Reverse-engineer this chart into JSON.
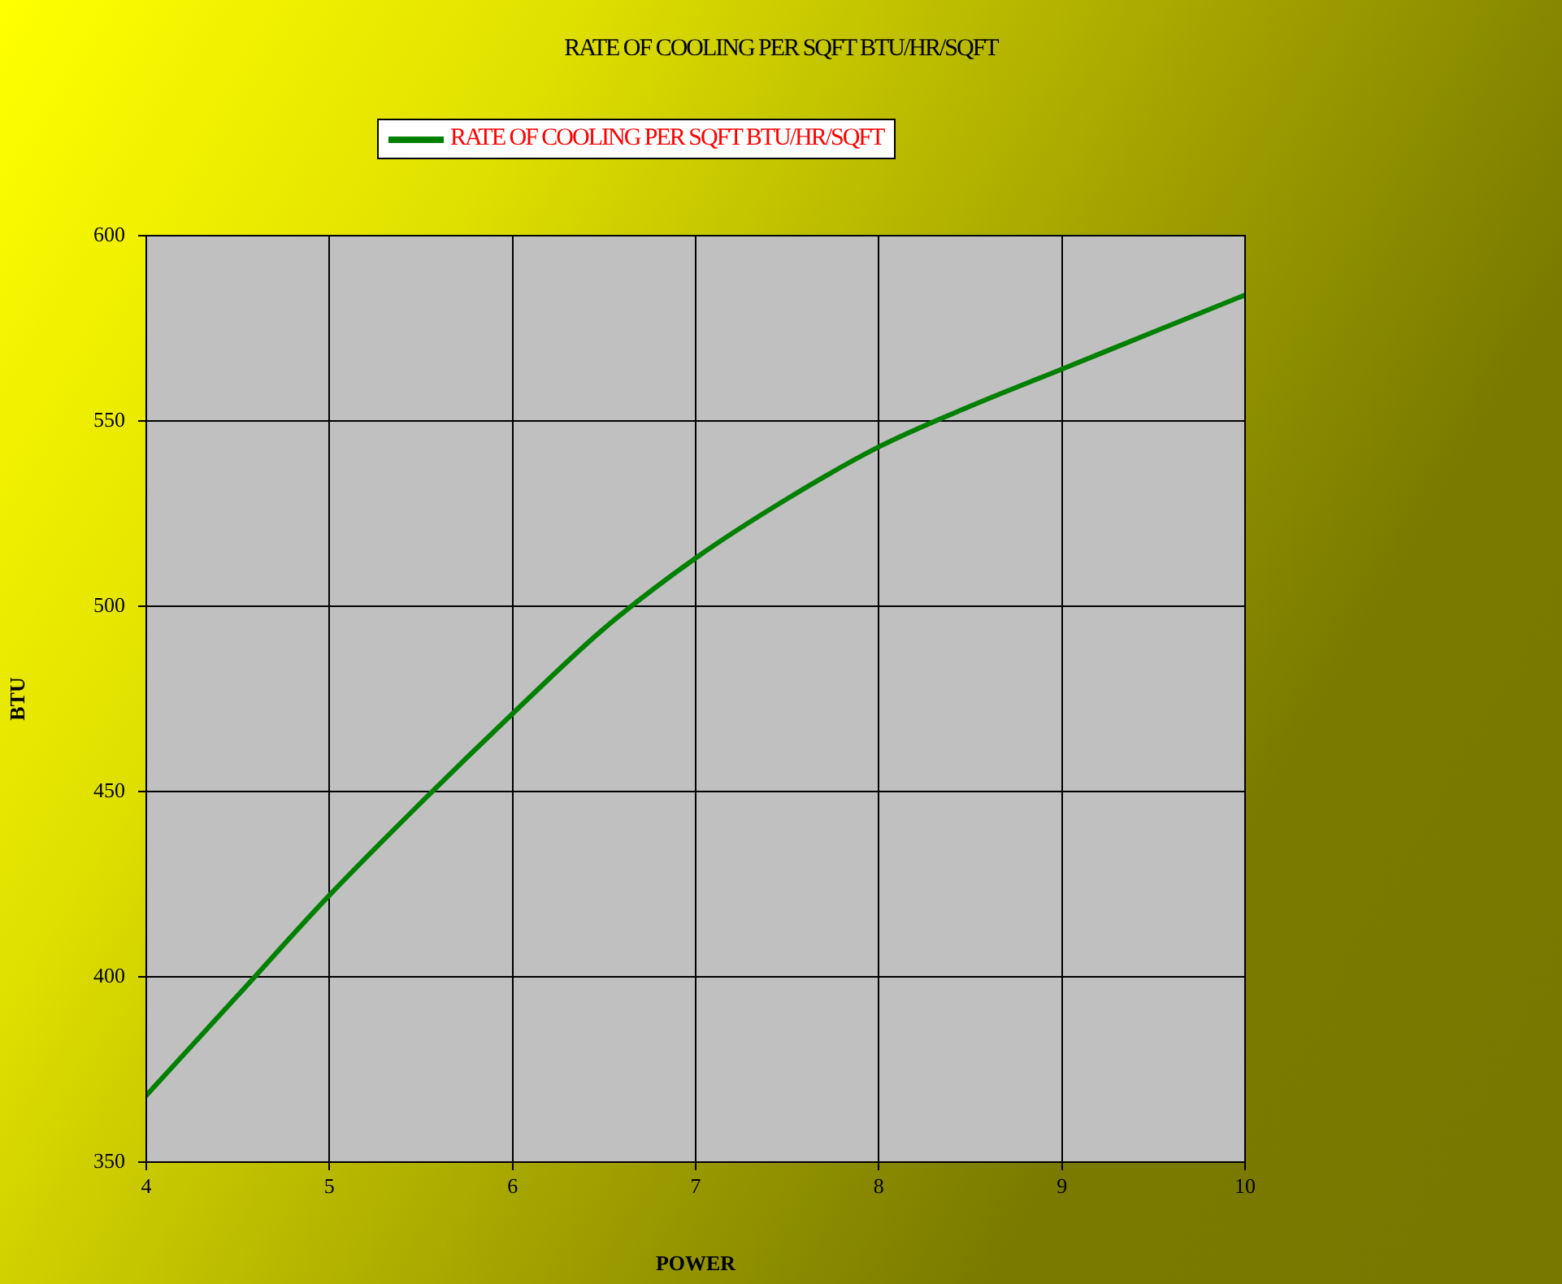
{
  "chart_data": {
    "type": "line",
    "title": "RATE OF COOLING PER SQFT BTU/HR/SQFT",
    "xlabel": "POWER",
    "ylabel": "BTU",
    "x": [
      4,
      4.5,
      5,
      5.5,
      6,
      6.5,
      7,
      7.5,
      8,
      8.5,
      9,
      9.5,
      10
    ],
    "series": [
      {
        "name": "RATE OF COOLING PER SQFT BTU/HR/SQFT",
        "color": "#008000",
        "values": [
          368,
          395,
          422,
          447,
          471,
          494,
          513,
          529,
          543,
          554,
          564,
          574,
          584
        ]
      }
    ],
    "xlim": [
      4,
      10
    ],
    "xticks": [
      4,
      5,
      6,
      7,
      8,
      9,
      10
    ],
    "ylim": [
      350,
      600
    ],
    "yticks": [
      350,
      400,
      450,
      500,
      550,
      600
    ],
    "grid": true,
    "legend": "top",
    "marker": "none",
    "line_style": "solid"
  }
}
